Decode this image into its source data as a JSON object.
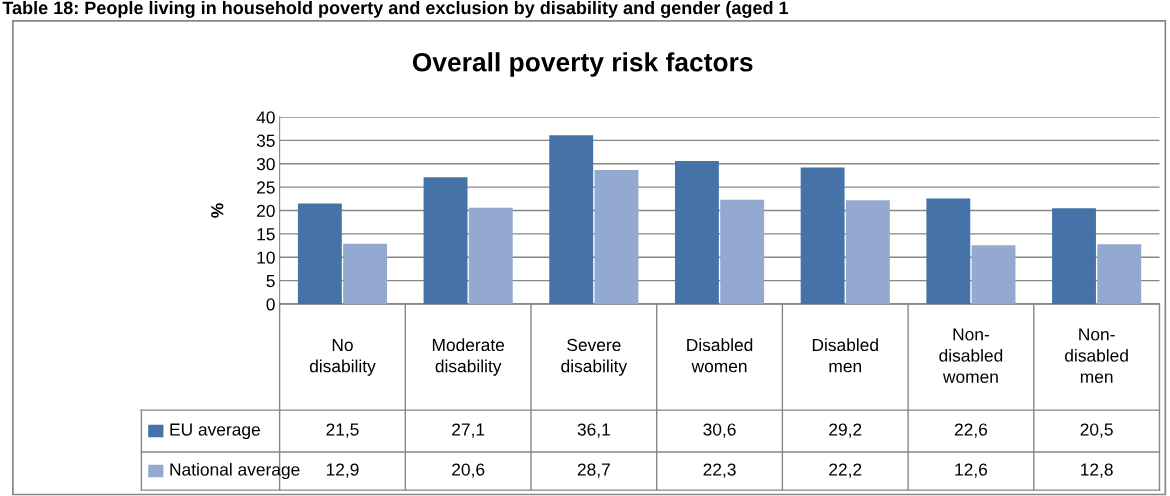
{
  "chart_data": {
    "type": "bar",
    "title": "Overall poverty risk factors",
    "ylabel": "%",
    "annotations": [
      "Table 18: People living in household poverty and exclusion by disability and gender (aged 1"
    ],
    "categories": [
      "No\ndisability",
      "Moderate\ndisability",
      "Severe\ndisability",
      "Disabled\nwomen",
      "Disabled\nmen",
      "Non-\ndisabled\nwomen",
      "Non-\ndisabled\nmen"
    ],
    "series": [
      {
        "name": "EU average",
        "color": "#4572a7",
        "values": [
          21.5,
          27.1,
          36.1,
          30.6,
          29.2,
          22.6,
          20.5
        ],
        "value_labels": [
          "21,5",
          "27,1",
          "36,1",
          "30,6",
          "29,2",
          "22,6",
          "20,5"
        ]
      },
      {
        "name": "National average",
        "color": "#93a9cf",
        "values": [
          12.9,
          20.6,
          28.7,
          22.3,
          22.2,
          12.6,
          12.8
        ],
        "value_labels": [
          "12,9",
          "20,6",
          "28,7",
          "22,3",
          "22,2",
          "12,6",
          "12,8"
        ]
      }
    ],
    "ylim": [
      0,
      40
    ],
    "yticks": [
      0,
      5,
      10,
      15,
      20,
      25,
      30,
      35,
      40
    ],
    "grid": "y",
    "legend": "bottom"
  }
}
